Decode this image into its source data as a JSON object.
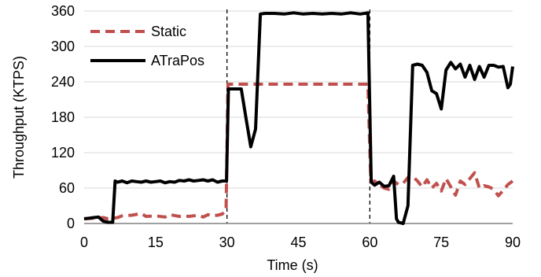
{
  "chart_data": {
    "type": "line",
    "xlabel": "Time (s)",
    "ylabel": "Throughput (KTPS)",
    "xlim": [
      0,
      90
    ],
    "ylim": [
      0,
      360
    ],
    "xticks": [
      0,
      15,
      30,
      45,
      60,
      75,
      90
    ],
    "yticks": [
      0,
      60,
      120,
      180,
      240,
      300,
      360
    ],
    "grid": "horizontal",
    "legend_position": "top-left",
    "markers_x": [
      30,
      60
    ],
    "series": [
      {
        "name": "Static",
        "color": "#c0504d",
        "style": "dashed",
        "points": [
          [
            0,
            8
          ],
          [
            2,
            9
          ],
          [
            4,
            10
          ],
          [
            5,
            8
          ],
          [
            6,
            9
          ],
          [
            7,
            10
          ],
          [
            8,
            13
          ],
          [
            10,
            14
          ],
          [
            12,
            17
          ],
          [
            13,
            12
          ],
          [
            15,
            13
          ],
          [
            17,
            11
          ],
          [
            18,
            15
          ],
          [
            20,
            12
          ],
          [
            21,
            13
          ],
          [
            22,
            12
          ],
          [
            24,
            14
          ],
          [
            25,
            11
          ],
          [
            26,
            15
          ],
          [
            27,
            13
          ],
          [
            28,
            14
          ],
          [
            29,
            16
          ],
          [
            29.8,
            22
          ],
          [
            30.2,
            236
          ],
          [
            31,
            236
          ],
          [
            35,
            236
          ],
          [
            40,
            236
          ],
          [
            45,
            236
          ],
          [
            50,
            236
          ],
          [
            55,
            236
          ],
          [
            59.6,
            236
          ],
          [
            60.2,
            70
          ],
          [
            61,
            72
          ],
          [
            62,
            66
          ],
          [
            63,
            60
          ],
          [
            64,
            58
          ],
          [
            65,
            72
          ],
          [
            66,
            66
          ],
          [
            67,
            68
          ],
          [
            68,
            78
          ],
          [
            69,
            80
          ],
          [
            70,
            72
          ],
          [
            71,
            62
          ],
          [
            72,
            74
          ],
          [
            73,
            60
          ],
          [
            74,
            68
          ],
          [
            75,
            55
          ],
          [
            76,
            76
          ],
          [
            77,
            62
          ],
          [
            78,
            48
          ],
          [
            79,
            72
          ],
          [
            80,
            66
          ],
          [
            81,
            76
          ],
          [
            82,
            86
          ],
          [
            83,
            60
          ],
          [
            84,
            64
          ],
          [
            85,
            62
          ],
          [
            86,
            58
          ],
          [
            87,
            47
          ],
          [
            88,
            56
          ],
          [
            89,
            66
          ],
          [
            90,
            72
          ]
        ]
      },
      {
        "name": "ATraPos",
        "color": "#000000",
        "style": "solid",
        "points": [
          [
            0,
            8
          ],
          [
            1,
            9
          ],
          [
            2,
            10
          ],
          [
            3,
            11
          ],
          [
            4,
            4
          ],
          [
            5,
            2
          ],
          [
            6,
            2
          ],
          [
            6.5,
            72
          ],
          [
            7,
            70
          ],
          [
            8,
            72
          ],
          [
            9,
            69
          ],
          [
            10,
            72
          ],
          [
            11,
            71
          ],
          [
            12,
            70
          ],
          [
            13,
            72
          ],
          [
            14,
            70
          ],
          [
            15,
            71
          ],
          [
            16,
            72
          ],
          [
            17,
            69
          ],
          [
            18,
            71
          ],
          [
            19,
            70
          ],
          [
            20,
            73
          ],
          [
            21,
            72
          ],
          [
            22,
            74
          ],
          [
            23,
            72
          ],
          [
            24,
            73
          ],
          [
            25,
            74
          ],
          [
            26,
            72
          ],
          [
            27,
            74
          ],
          [
            28,
            70
          ],
          [
            29,
            72
          ],
          [
            29.9,
            72
          ],
          [
            30.3,
            228
          ],
          [
            31,
            228
          ],
          [
            32,
            228
          ],
          [
            33,
            228
          ],
          [
            34,
            178
          ],
          [
            35,
            130
          ],
          [
            36,
            160
          ],
          [
            37,
            355
          ],
          [
            38,
            356
          ],
          [
            40,
            356
          ],
          [
            42,
            355
          ],
          [
            44,
            357
          ],
          [
            46,
            355
          ],
          [
            48,
            356
          ],
          [
            50,
            355
          ],
          [
            52,
            356
          ],
          [
            54,
            355
          ],
          [
            56,
            357
          ],
          [
            58,
            355
          ],
          [
            59.6,
            357
          ],
          [
            60.3,
            70
          ],
          [
            61,
            65
          ],
          [
            62,
            70
          ],
          [
            63,
            63
          ],
          [
            64,
            64
          ],
          [
            65,
            80
          ],
          [
            65.6,
            8
          ],
          [
            66,
            2
          ],
          [
            67,
            0
          ],
          [
            68,
            30
          ],
          [
            69,
            268
          ],
          [
            70,
            270
          ],
          [
            71,
            268
          ],
          [
            72,
            256
          ],
          [
            73,
            225
          ],
          [
            74,
            220
          ],
          [
            75,
            194
          ],
          [
            76,
            260
          ],
          [
            77,
            273
          ],
          [
            78,
            262
          ],
          [
            79,
            270
          ],
          [
            80,
            248
          ],
          [
            81,
            268
          ],
          [
            82,
            244
          ],
          [
            83,
            266
          ],
          [
            84,
            248
          ],
          [
            85,
            268
          ],
          [
            86,
            268
          ],
          [
            87,
            265
          ],
          [
            88,
            266
          ],
          [
            89,
            230
          ],
          [
            89.5,
            236
          ],
          [
            90,
            266
          ]
        ]
      }
    ]
  }
}
